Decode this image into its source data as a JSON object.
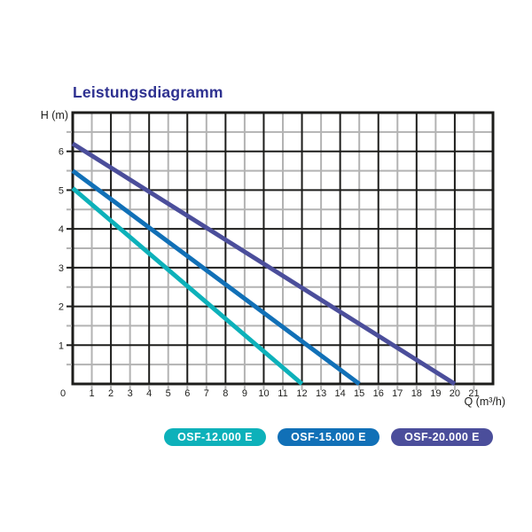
{
  "page": {
    "background": "#ffffff"
  },
  "chart_data": {
    "type": "line",
    "title": "Leistungsdiagramm",
    "title_color": "#2e3190",
    "xlabel": "Q (m³/h)",
    "ylabel": "H (m)",
    "xlim": [
      0,
      22
    ],
    "ylim": [
      0,
      7
    ],
    "axis_color": "#1d1d1b",
    "grid": {
      "on": true,
      "major_color": "#1d1d1b",
      "minor_color": "#b3b3b3",
      "x_major_step": 2,
      "x_minor_step": 1,
      "y_major_step": 1,
      "y_minor_step": 0.5
    },
    "x_tick_labels": [
      "0",
      "1",
      "2",
      "3",
      "4",
      "5",
      "6",
      "7",
      "8",
      "9",
      "10",
      "11",
      "12",
      "13",
      "14",
      "15",
      "16",
      "17",
      "18",
      "19",
      "20",
      "21"
    ],
    "y_tick_labels": [
      "1",
      "2",
      "3",
      "4",
      "5",
      "6"
    ],
    "legend_position": "bottom",
    "series": [
      {
        "name": "OSF-12.000 E",
        "color": "#0db1ba",
        "points": [
          [
            0,
            5.05
          ],
          [
            12,
            0
          ]
        ]
      },
      {
        "name": "OSF-15.000 E",
        "color": "#1170b7",
        "points": [
          [
            0,
            5.5
          ],
          [
            15,
            0
          ]
        ]
      },
      {
        "name": "OSF-20.000 E",
        "color": "#4b4e9b",
        "points": [
          [
            0,
            6.2
          ],
          [
            20,
            0
          ]
        ]
      }
    ]
  }
}
